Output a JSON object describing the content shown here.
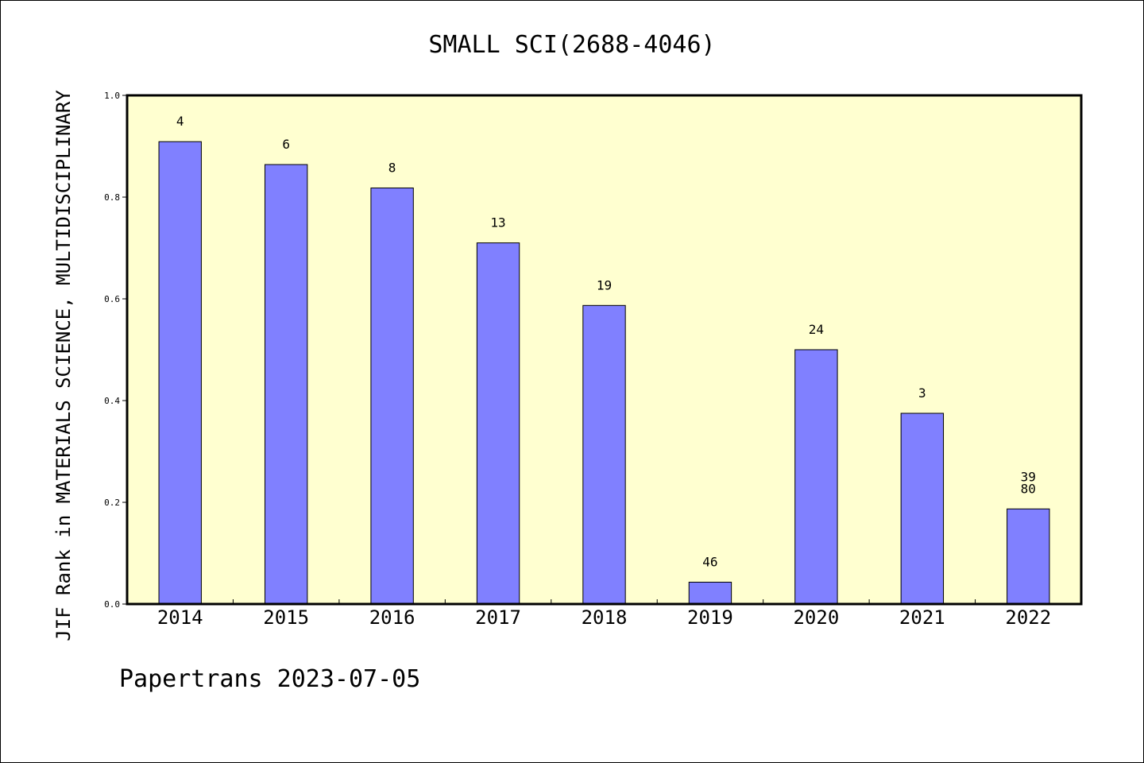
{
  "chart_data": {
    "type": "bar",
    "title": "SMALL SCI(2688-4046)",
    "xlabel": "",
    "ylabel": "JIF Rank in MATERIALS SCIENCE, MULTIDISCIPLINARY",
    "categories": [
      "2014",
      "2015",
      "2016",
      "2017",
      "2018",
      "2019",
      "2020",
      "2021",
      "2022"
    ],
    "values": [
      0.909,
      0.864,
      0.818,
      0.71,
      0.587,
      0.043,
      0.5,
      0.375,
      0.187
    ],
    "bar_labels": [
      [
        "4"
      ],
      [
        "6"
      ],
      [
        "8"
      ],
      [
        "13"
      ],
      [
        "19"
      ],
      [
        "46"
      ],
      [
        "24"
      ],
      [
        "3"
      ],
      [
        "39",
        "80"
      ]
    ],
    "yticks": [
      "0.0",
      "0.2",
      "0.4",
      "0.6",
      "0.8",
      "1.0"
    ],
    "ylim": [
      0,
      1.0
    ],
    "grid": false,
    "bar_color": "#8080ff",
    "plot_background": "#ffffd0"
  },
  "footer": "Papertrans 2023-07-05"
}
